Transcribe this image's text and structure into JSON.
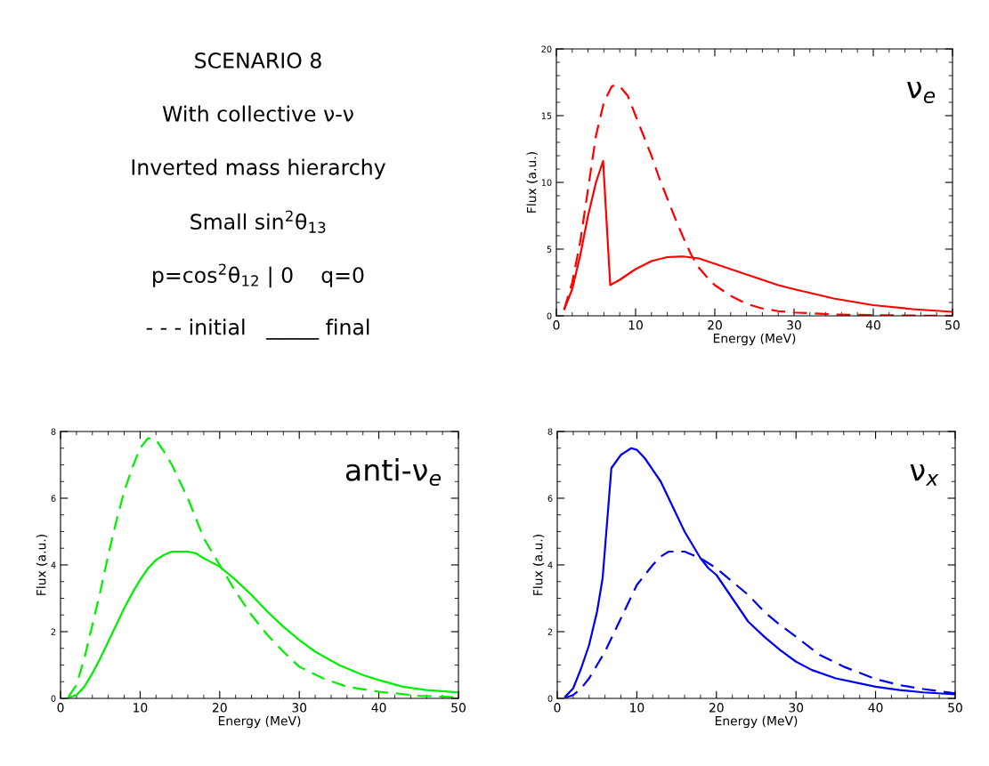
{
  "chart_data": [
    {
      "type": "other",
      "annotations": [
        "SCENARIO 8",
        "With collective ν-ν",
        "Inverted mass hierarchy",
        "Small sin$^{2}$θ$_{13}$",
        "p=cos$^{2}$θ$_{12}$ | 0    q=0",
        "- - - initial   _____ final"
      ]
    },
    {
      "type": "line",
      "xlabel": "Energy (MeV)",
      "ylabel": "Flux (a.u.)",
      "annotations": [
        "ν$_{e}$"
      ],
      "xlim": [
        0,
        50
      ],
      "xticks": [
        0,
        10,
        20,
        30,
        40,
        50
      ],
      "ylim": [
        0,
        20
      ],
      "yticks": [
        0,
        5,
        10,
        15,
        20
      ],
      "grid": false,
      "legend": false,
      "series": [
        {
          "color": "#ff0000",
          "line_style": "dashed",
          "x": [
            1,
            2,
            3,
            4,
            5,
            6,
            7,
            7.5,
            8,
            9,
            10,
            11,
            12,
            13,
            14,
            15,
            16,
            17,
            18,
            19,
            20,
            22,
            24,
            26,
            28,
            30,
            35,
            40,
            45,
            50
          ],
          "values": [
            0.5,
            2.5,
            5.5,
            9.5,
            13.5,
            16,
            17.2,
            17.3,
            17.2,
            16.5,
            15,
            13.5,
            12,
            10.3,
            8.8,
            7.3,
            5.9,
            4.6,
            3.6,
            2.9,
            2.3,
            1.5,
            0.9,
            0.55,
            0.35,
            0.25,
            0.1,
            0.05,
            0.02,
            0.01
          ]
        },
        {
          "color": "#ff0000",
          "line_style": "solid",
          "x": [
            1,
            2,
            3,
            4,
            5,
            5.9,
            6.8,
            8,
            10,
            12,
            14,
            16,
            18,
            20,
            22,
            25,
            28,
            30,
            35,
            40,
            45,
            50
          ],
          "values": [
            0.5,
            2,
            4.5,
            7.5,
            10,
            11.6,
            2.3,
            2.7,
            3.5,
            4.1,
            4.4,
            4.45,
            4.3,
            3.9,
            3.5,
            2.9,
            2.3,
            2.0,
            1.3,
            0.8,
            0.5,
            0.3
          ]
        }
      ]
    },
    {
      "type": "line",
      "xlabel": "Energy (MeV)",
      "ylabel": "Flux (a.u.)",
      "annotations": [
        "anti-ν$_{e}$"
      ],
      "xlim": [
        0,
        50
      ],
      "xticks": [
        0,
        10,
        20,
        30,
        40,
        50
      ],
      "ylim": [
        0,
        8
      ],
      "yticks": [
        0,
        2,
        4,
        6,
        8
      ],
      "grid": false,
      "legend": false,
      "series": [
        {
          "color": "#00ee00",
          "line_style": "dashed",
          "x": [
            1,
            2,
            3,
            4,
            5,
            6,
            7,
            8,
            9,
            10,
            11,
            12,
            13,
            14,
            15,
            16,
            17,
            18,
            19,
            20,
            22,
            24,
            26,
            28,
            30,
            33,
            36,
            40,
            45,
            50
          ],
          "values": [
            0.05,
            0.4,
            1.2,
            2.2,
            3.2,
            4.3,
            5.3,
            6.2,
            6.9,
            7.5,
            7.8,
            7.75,
            7.4,
            7.0,
            6.5,
            6.0,
            5.4,
            4.8,
            4.4,
            4.0,
            3.2,
            2.5,
            1.9,
            1.4,
            0.95,
            0.6,
            0.35,
            0.2,
            0.08,
            0.03
          ]
        },
        {
          "color": "#00ee00",
          "line_style": "solid",
          "x": [
            1,
            2,
            3,
            4,
            5,
            6,
            7,
            8,
            9,
            10,
            11,
            12,
            13,
            14,
            15,
            16,
            17,
            18,
            20,
            22,
            24,
            26,
            28,
            30,
            32,
            35,
            38,
            40,
            43,
            46,
            50
          ],
          "values": [
            0.02,
            0.1,
            0.35,
            0.75,
            1.2,
            1.7,
            2.2,
            2.7,
            3.15,
            3.55,
            3.9,
            4.15,
            4.3,
            4.4,
            4.4,
            4.4,
            4.35,
            4.2,
            3.95,
            3.55,
            3.1,
            2.6,
            2.15,
            1.75,
            1.4,
            1.0,
            0.7,
            0.55,
            0.35,
            0.25,
            0.18
          ]
        }
      ]
    },
    {
      "type": "line",
      "xlabel": "Energy (MeV)",
      "ylabel": "Flux (a.u.)",
      "annotations": [
        "ν$_{x}$"
      ],
      "xlim": [
        0,
        50
      ],
      "xticks": [
        0,
        10,
        20,
        30,
        40,
        50
      ],
      "ylim": [
        0,
        8
      ],
      "yticks": [
        0,
        2,
        4,
        6,
        8
      ],
      "grid": false,
      "legend": false,
      "series": [
        {
          "color": "#0000ee",
          "line_style": "solid",
          "x": [
            1,
            2,
            3,
            4,
            5,
            5.7,
            6,
            6.8,
            8,
            9.3,
            10,
            11,
            12,
            13,
            14,
            15,
            16,
            17,
            18,
            19,
            20,
            22,
            24,
            26,
            28,
            30,
            32,
            35,
            38,
            40,
            43,
            46,
            50
          ],
          "values": [
            0.05,
            0.3,
            0.9,
            1.6,
            2.6,
            3.6,
            4.5,
            6.9,
            7.3,
            7.5,
            7.45,
            7.2,
            6.85,
            6.5,
            6.0,
            5.5,
            5.0,
            4.6,
            4.2,
            3.9,
            3.7,
            3.0,
            2.3,
            1.85,
            1.45,
            1.1,
            0.85,
            0.6,
            0.45,
            0.35,
            0.25,
            0.18,
            0.12
          ]
        },
        {
          "color": "#0000ee",
          "line_style": "dashed",
          "x": [
            1,
            2,
            3,
            4,
            5,
            6,
            7,
            8,
            9,
            10,
            11,
            12,
            13,
            14,
            15,
            16,
            17,
            18,
            20,
            22,
            24,
            26,
            28,
            30,
            33,
            36,
            40,
            43,
            46,
            50
          ],
          "values": [
            0.02,
            0.1,
            0.3,
            0.6,
            1.0,
            1.4,
            1.9,
            2.4,
            2.9,
            3.4,
            3.7,
            4.0,
            4.25,
            4.4,
            4.4,
            4.4,
            4.3,
            4.2,
            3.9,
            3.5,
            3.1,
            2.6,
            2.2,
            1.85,
            1.3,
            0.95,
            0.58,
            0.4,
            0.28,
            0.15
          ]
        }
      ]
    }
  ]
}
